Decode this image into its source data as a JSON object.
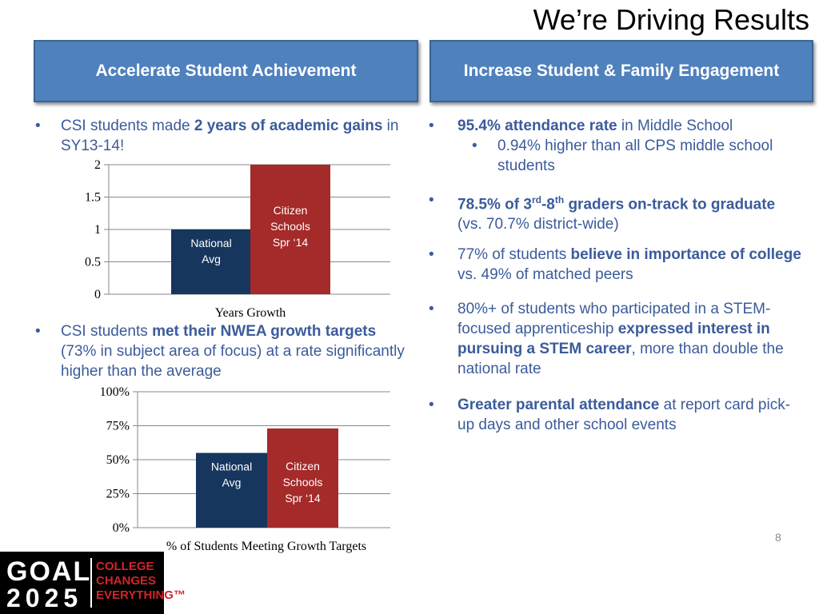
{
  "title": "We’re Driving Results",
  "headers": {
    "left": "Accelerate Student Achievement",
    "right": "Increase Student & Family Engagement"
  },
  "left": {
    "b1": {
      "pre": "CSI students made ",
      "bold": "2 years of academic gains",
      "post": " in SY13-14!"
    },
    "b2": {
      "pre": "CSI students ",
      "bold": "met their NWEA growth targets",
      "post": " (73% in subject area of focus) at a rate significantly higher than the average"
    }
  },
  "right": {
    "b1": {
      "bold": "95.4% attendance rate",
      "post": " in Middle School"
    },
    "b1sub": "0.94% higher than all CPS middle school students",
    "b2": {
      "bold1": "78.5% of 3",
      "sup1": "rd",
      "bold2": "-8",
      "sup2": "th",
      "bold3": " graders on-track to graduate",
      "post": " (vs. 70.7% district-wide)"
    },
    "b3": {
      "pre": "77% of students ",
      "bold": "believe in importance of college",
      "post": " vs. 49% of matched peers"
    },
    "b4": {
      "pre": "80%+ of students who participated in a STEM-focused apprenticeship ",
      "bold": "expressed interest in pursuing a STEM career",
      "post": ", more than double the national rate"
    },
    "b5": {
      "bold": "Greater parental attendance",
      "post": " at report card pick-up days and other school events"
    }
  },
  "bullet_glyph": "•",
  "page_number": "8",
  "logo": {
    "line1": "GOAL",
    "line2": "2025",
    "tagline": [
      "COLLEGE",
      "CHANGES",
      "EVERYTHING™"
    ]
  },
  "colors": {
    "header": "#4f81bd",
    "text": "#3b5b9b",
    "national": "#17365d",
    "citizen": "#a52a2a"
  },
  "chart_data": [
    {
      "type": "bar",
      "xlabel": "Years Growth",
      "ylim": [
        0,
        2
      ],
      "yticks": [
        "0",
        "0.5",
        "1",
        "1.5",
        "2"
      ],
      "yticks_values": [
        0,
        0.5,
        1,
        1.5,
        2
      ],
      "categories": [
        "National Avg",
        "Citizen Schools Spr ‘14"
      ],
      "bar_labels": [
        [
          "National",
          "Avg"
        ],
        [
          "Citizen",
          "Schools",
          "Spr ‘14"
        ]
      ],
      "values": [
        1,
        2
      ],
      "colors": [
        "#17365d",
        "#a52a2a"
      ],
      "grid": true
    },
    {
      "type": "bar",
      "xlabel": "% of Students Meeting Growth Targets",
      "ylim": [
        0,
        100
      ],
      "yticks": [
        "0%",
        "25%",
        "50%",
        "75%",
        "100%"
      ],
      "yticks_values": [
        0,
        25,
        50,
        75,
        100
      ],
      "categories": [
        "National Avg",
        "Citizen Schools Spr ‘14"
      ],
      "bar_labels": [
        [
          "National",
          "Avg"
        ],
        [
          "Citizen",
          "Schools",
          "Spr ‘14"
        ]
      ],
      "values": [
        55,
        73
      ],
      "colors": [
        "#17365d",
        "#a52a2a"
      ],
      "grid": true
    }
  ]
}
